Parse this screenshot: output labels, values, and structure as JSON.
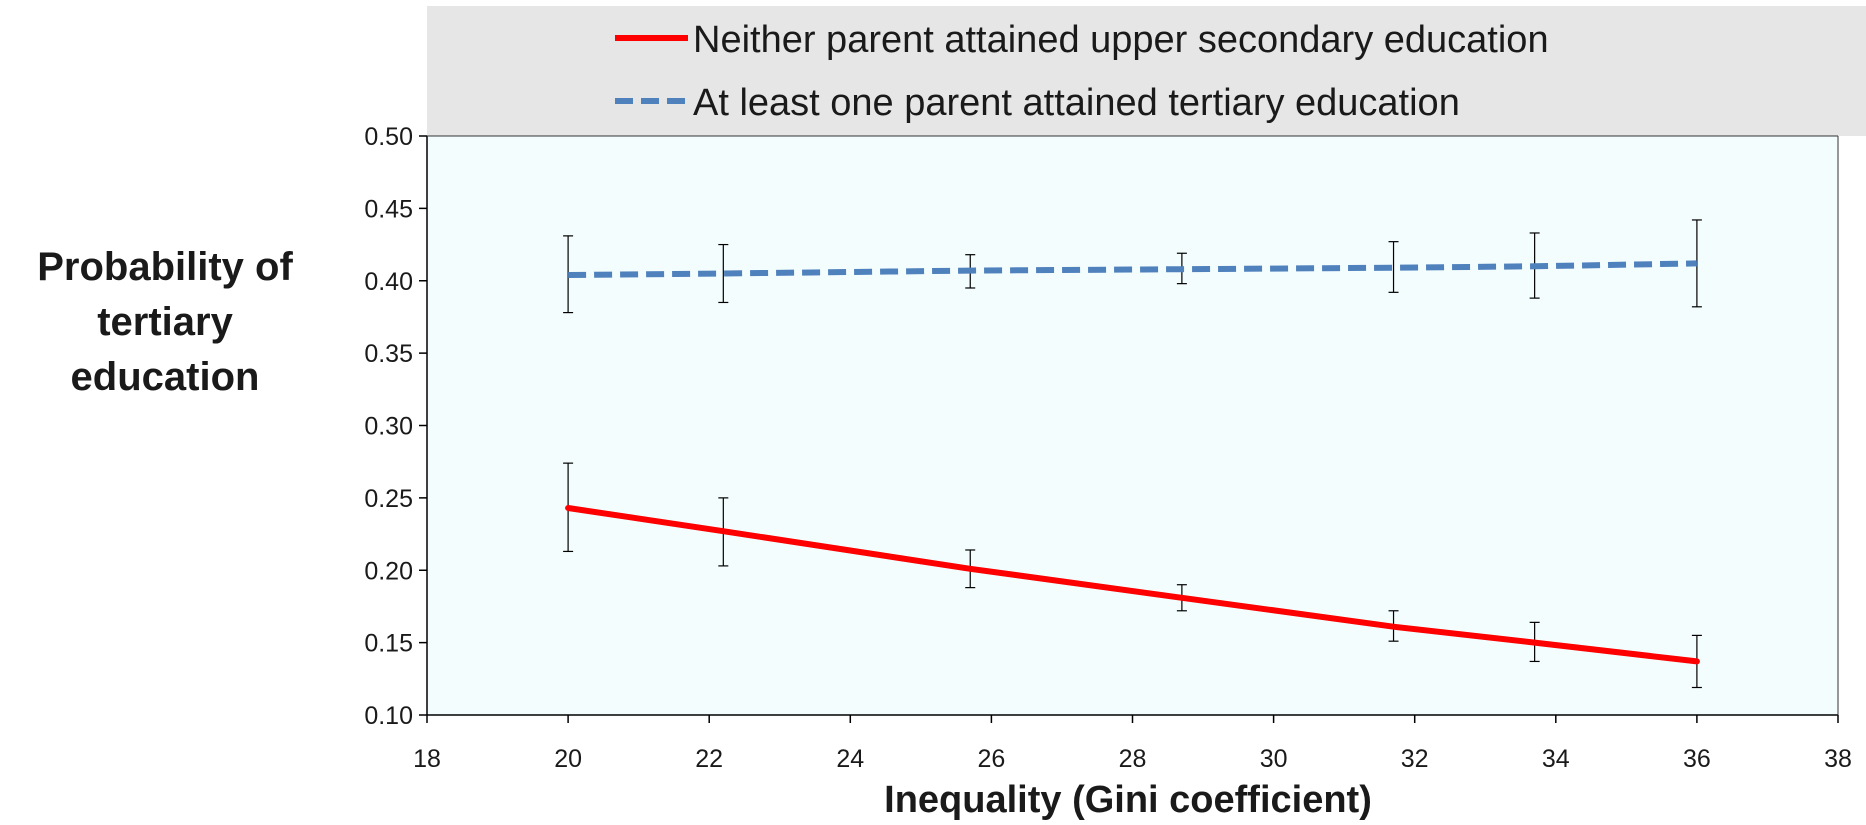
{
  "chart_data": {
    "type": "line",
    "xlabel": "Inequality (Gini coefficient)",
    "ylabel_lines": [
      "Probability of",
      "tertiary",
      "education"
    ],
    "xlim": [
      18,
      38
    ],
    "ylim": [
      0.1,
      0.5
    ],
    "xticks": [
      18,
      20,
      22,
      24,
      26,
      28,
      30,
      32,
      34,
      36,
      38
    ],
    "xtick_labels": [
      "18",
      "20",
      "22",
      "24",
      "26",
      "28",
      "30",
      "32",
      "34",
      "36",
      "38"
    ],
    "yticks": [
      0.1,
      0.15,
      0.2,
      0.25,
      0.3,
      0.35,
      0.4,
      0.45,
      0.5
    ],
    "ytick_labels": [
      "0.10",
      "0.15",
      "0.20",
      "0.25",
      "0.30",
      "0.35",
      "0.40",
      "0.45",
      "0.50"
    ],
    "grid": false,
    "legend_position": "top",
    "plot_background": "#f3fdfd",
    "legend_background": "#e6e6e6",
    "series": [
      {
        "name": "Neither parent attained upper secondary education",
        "color": "#ff0000",
        "line_style": "solid",
        "x": [
          20,
          22.2,
          25.7,
          28.7,
          31.7,
          33.7,
          36
        ],
        "y": [
          0.243,
          0.227,
          0.201,
          0.181,
          0.161,
          0.15,
          0.137
        ],
        "err_low": [
          0.213,
          0.203,
          0.188,
          0.172,
          0.151,
          0.137,
          0.119
        ],
        "err_high": [
          0.274,
          0.25,
          0.214,
          0.19,
          0.172,
          0.164,
          0.155
        ]
      },
      {
        "name": "At least one parent attained tertiary education",
        "color": "#4f81bd",
        "line_style": "dashed",
        "x": [
          20,
          22.2,
          25.7,
          28.7,
          31.7,
          33.7,
          36
        ],
        "y": [
          0.404,
          0.405,
          0.407,
          0.408,
          0.409,
          0.41,
          0.412
        ],
        "err_low": [
          0.378,
          0.385,
          0.395,
          0.398,
          0.392,
          0.388,
          0.382
        ],
        "err_high": [
          0.431,
          0.425,
          0.418,
          0.419,
          0.427,
          0.433,
          0.442
        ]
      }
    ]
  }
}
